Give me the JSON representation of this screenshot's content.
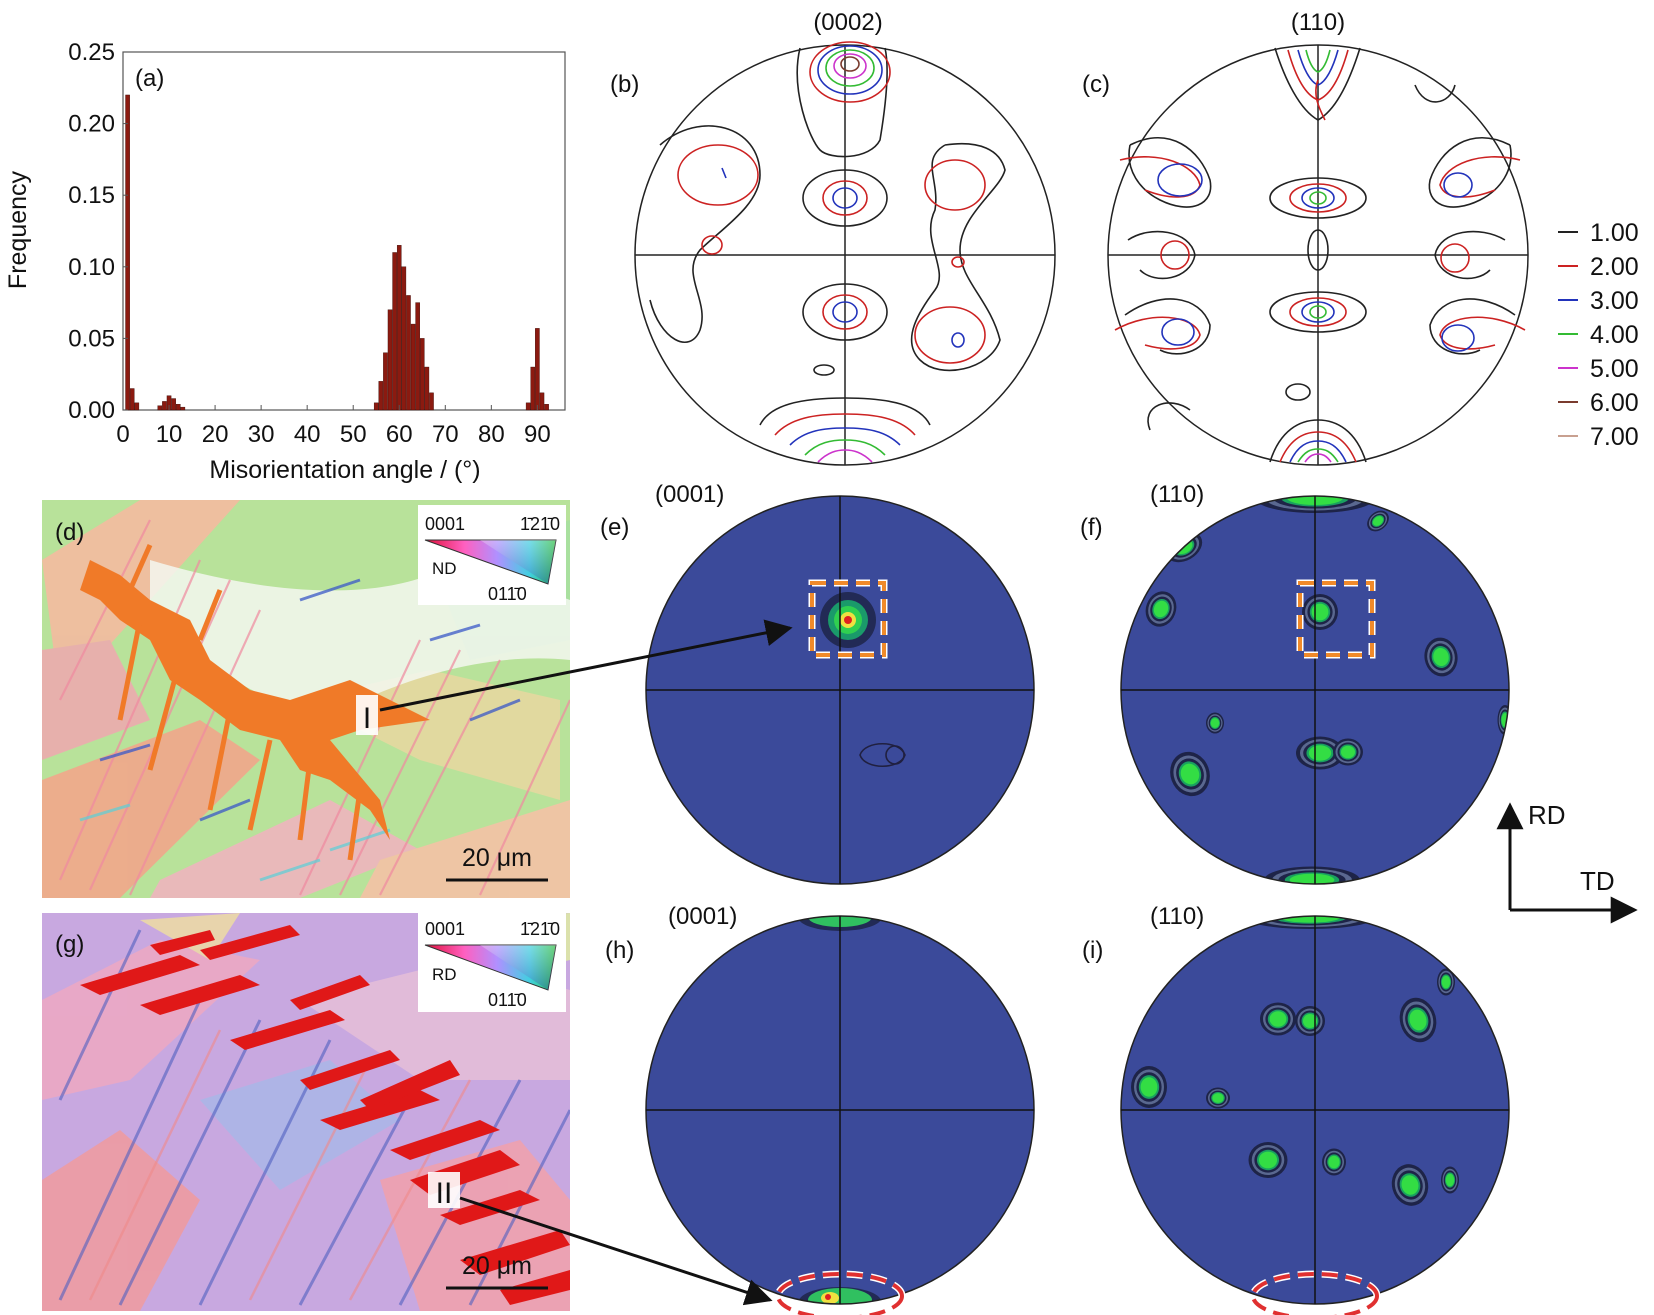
{
  "panels": {
    "a": {
      "label": "(a)"
    },
    "b": {
      "label": "(b)",
      "title": "(0002)"
    },
    "c": {
      "label": "(c)",
      "title": "(110)"
    },
    "d": {
      "label": "(d)",
      "scalebar": "20 μm",
      "marker": "I",
      "key": {
        "corner_top_left": "0001",
        "corner_top_right": "1̄21̄0",
        "corner_bottom": "011̄0",
        "axis": "ND"
      }
    },
    "e": {
      "label": "(e)",
      "title": "(0001)"
    },
    "f": {
      "label": "(f)",
      "title": "(110)"
    },
    "g": {
      "label": "(g)",
      "scalebar": "20 μm",
      "marker": "II",
      "key": {
        "corner_top_left": "0001",
        "corner_top_right": "1̄21̄0",
        "corner_bottom": "011̄0",
        "axis": "RD"
      }
    },
    "h": {
      "label": "(h)",
      "title": "(0001)"
    },
    "i": {
      "label": "(i)",
      "title": "(110)"
    }
  },
  "contour_legend": {
    "levels": [
      "1.00",
      "2.00",
      "3.00",
      "4.00",
      "5.00",
      "6.00",
      "7.00"
    ],
    "colors": [
      "#222222",
      "#cc2222",
      "#2233bb",
      "#33bb33",
      "#cc33cc",
      "#7a3b2e",
      "#c8a090"
    ]
  },
  "axes_key": {
    "rd": "RD",
    "td": "TD"
  },
  "colors": {
    "pole_fill": "#3b4a9a",
    "orange_box": "#f08a2a",
    "red_ellipse": "#e03030",
    "bar": "#8b1a10"
  },
  "chart_data": {
    "type": "bar",
    "xlabel": "Misorientation angle / (°)",
    "ylabel": "Frequency",
    "xlim": [
      0,
      96
    ],
    "ylim": [
      0,
      0.25
    ],
    "xticks": [
      "0",
      "10",
      "20",
      "30",
      "40",
      "50",
      "60",
      "70",
      "80",
      "90"
    ],
    "yticks": [
      "0.00",
      "0.05",
      "0.10",
      "0.15",
      "0.20",
      "0.25"
    ],
    "grid": false,
    "x": [
      1,
      2,
      3,
      8,
      9,
      10,
      11,
      12,
      13,
      55,
      56,
      57,
      58,
      59,
      60,
      61,
      62,
      63,
      64,
      65,
      66,
      67,
      88,
      89,
      90,
      91,
      92
    ],
    "values": [
      0.22,
      0.015,
      0.005,
      0.003,
      0.006,
      0.01,
      0.008,
      0.004,
      0.002,
      0.005,
      0.02,
      0.04,
      0.07,
      0.11,
      0.115,
      0.1,
      0.08,
      0.06,
      0.075,
      0.05,
      0.03,
      0.012,
      0.005,
      0.03,
      0.057,
      0.012,
      0.004
    ]
  }
}
